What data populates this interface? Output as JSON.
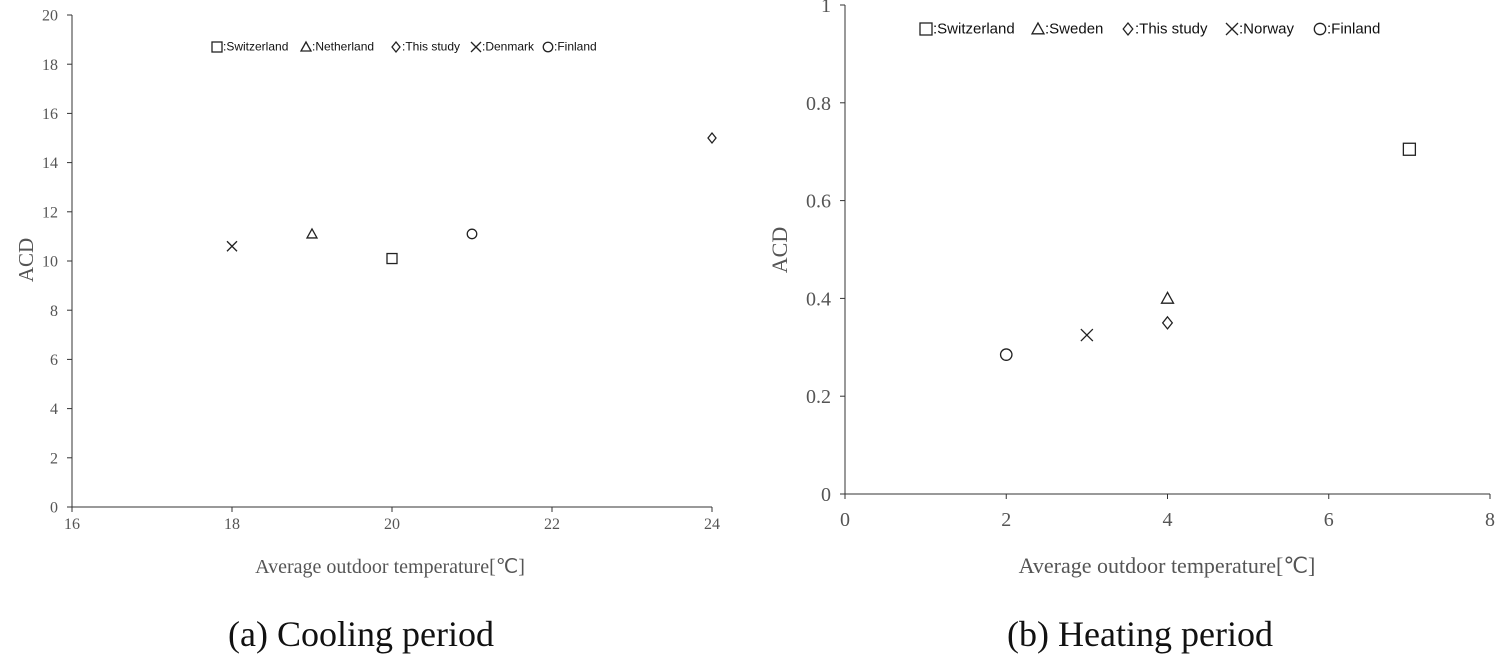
{
  "chart_data": [
    {
      "type": "scatter",
      "caption": "(a) Cooling period",
      "xlabel": "Average outdoor temperature[℃]",
      "ylabel": "ACD",
      "xlim": [
        16,
        24
      ],
      "ylim": [
        0,
        20
      ],
      "xticks": [
        16,
        18,
        20,
        22,
        24
      ],
      "yticks": [
        0,
        2,
        4,
        6,
        8,
        10,
        12,
        14,
        16,
        18,
        20
      ],
      "grid": false,
      "legend_position": "top",
      "series": [
        {
          "name": ":Switzerland",
          "marker": "square",
          "x": [
            20
          ],
          "y": [
            10.1
          ]
        },
        {
          "name": ":Netherland",
          "marker": "triangle",
          "x": [
            19
          ],
          "y": [
            11.1
          ]
        },
        {
          "name": ":This study",
          "marker": "diamond",
          "x": [
            24
          ],
          "y": [
            15.0
          ]
        },
        {
          "name": ":Denmark",
          "marker": "x",
          "x": [
            18
          ],
          "y": [
            10.6
          ]
        },
        {
          "name": ":Finland",
          "marker": "circle",
          "x": [
            21
          ],
          "y": [
            11.1
          ]
        }
      ]
    },
    {
      "type": "scatter",
      "caption": "(b) Heating period",
      "xlabel": "Average outdoor temperature[℃]",
      "ylabel": "ACD",
      "xlim": [
        0,
        8
      ],
      "ylim": [
        0,
        1
      ],
      "xticks": [
        0,
        2,
        4,
        6,
        8
      ],
      "yticks": [
        0,
        0.2,
        0.4,
        0.6,
        0.8,
        1
      ],
      "ytick_labels": [
        "0",
        "0.2",
        "0.4",
        "0.6",
        "0.8",
        "1"
      ],
      "grid": false,
      "legend_position": "top",
      "series": [
        {
          "name": ":Switzerland",
          "marker": "square",
          "x": [
            7
          ],
          "y": [
            0.705
          ]
        },
        {
          "name": ":Sweden",
          "marker": "triangle",
          "x": [
            4
          ],
          "y": [
            0.4
          ]
        },
        {
          "name": ":This study",
          "marker": "diamond",
          "x": [
            4
          ],
          "y": [
            0.35
          ]
        },
        {
          "name": ":Norway",
          "marker": "x",
          "x": [
            3
          ],
          "y": [
            0.325
          ]
        },
        {
          "name": ":Finland",
          "marker": "circle",
          "x": [
            2
          ],
          "y": [
            0.285
          ]
        }
      ]
    }
  ]
}
